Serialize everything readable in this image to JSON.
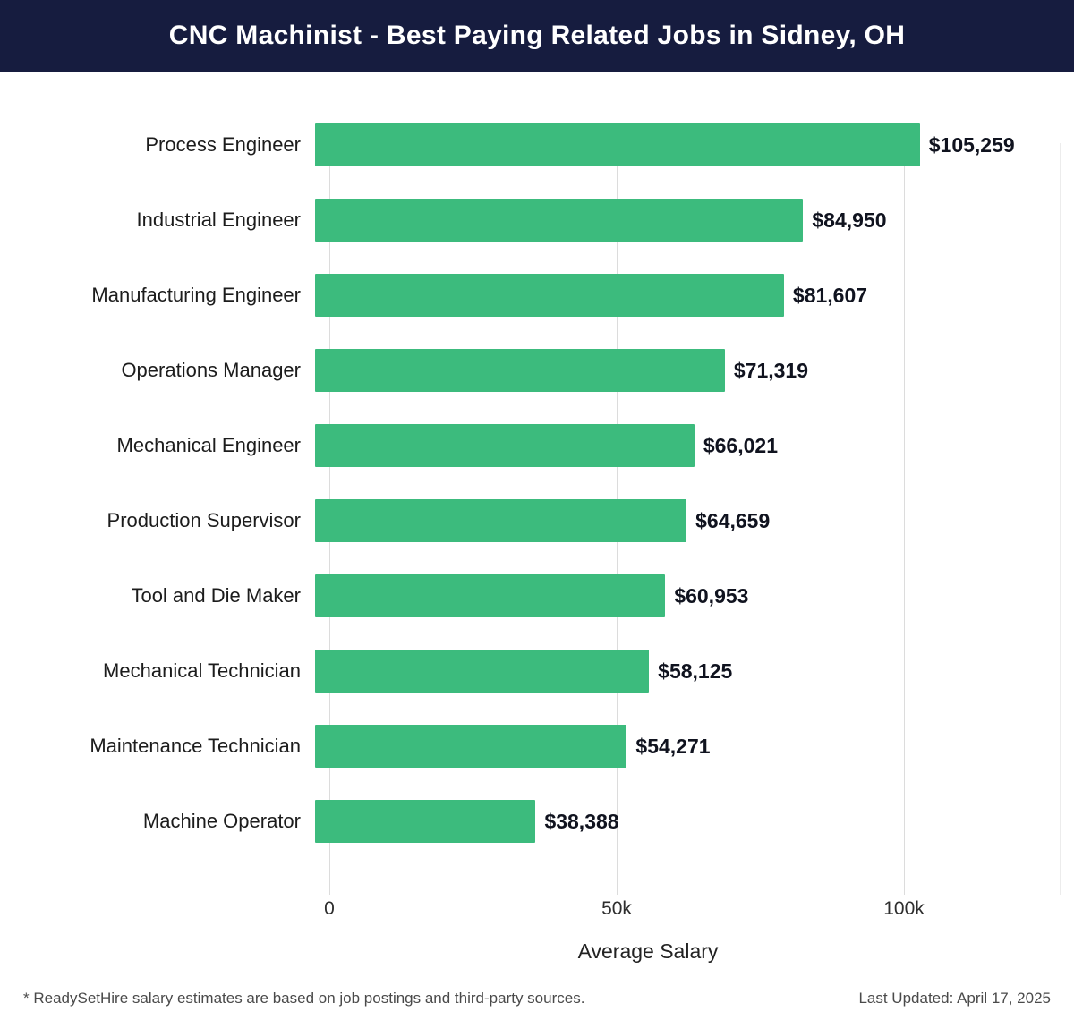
{
  "header": {
    "title": "CNC Machinist - Best Paying Related Jobs in Sidney, OH"
  },
  "chart_data": {
    "type": "bar",
    "orientation": "horizontal",
    "title": "CNC Machinist - Best Paying Related Jobs in Sidney, OH",
    "categories": [
      "Process Engineer",
      "Industrial Engineer",
      "Manufacturing Engineer",
      "Operations Manager",
      "Mechanical Engineer",
      "Production Supervisor",
      "Tool and Die Maker",
      "Mechanical Technician",
      "Maintenance Technician",
      "Machine Operator"
    ],
    "values": [
      105259,
      84950,
      81607,
      71319,
      66021,
      64659,
      60953,
      58125,
      54271,
      38388
    ],
    "value_labels": [
      "$105,259",
      "$84,950",
      "$81,607",
      "$71,319",
      "$66,021",
      "$64,659",
      "$60,953",
      "$58,125",
      "$54,271",
      "$38,388"
    ],
    "xlabel": "Average Salary",
    "xlim": [
      0,
      127000
    ],
    "x_ticks": [
      {
        "value": 0,
        "label": "0"
      },
      {
        "value": 50000,
        "label": "50k"
      },
      {
        "value": 100000,
        "label": "100k"
      }
    ],
    "grid": true,
    "legend": "none"
  },
  "colors": {
    "bar": "#3cbb7d",
    "header_bg": "#161c3f",
    "grid": "#dcdcdc",
    "value_text": "#10131f"
  },
  "footer": {
    "note": "* ReadySetHire salary estimates are based on job postings and third-party sources.",
    "updated": "Last Updated: April 17, 2025"
  }
}
